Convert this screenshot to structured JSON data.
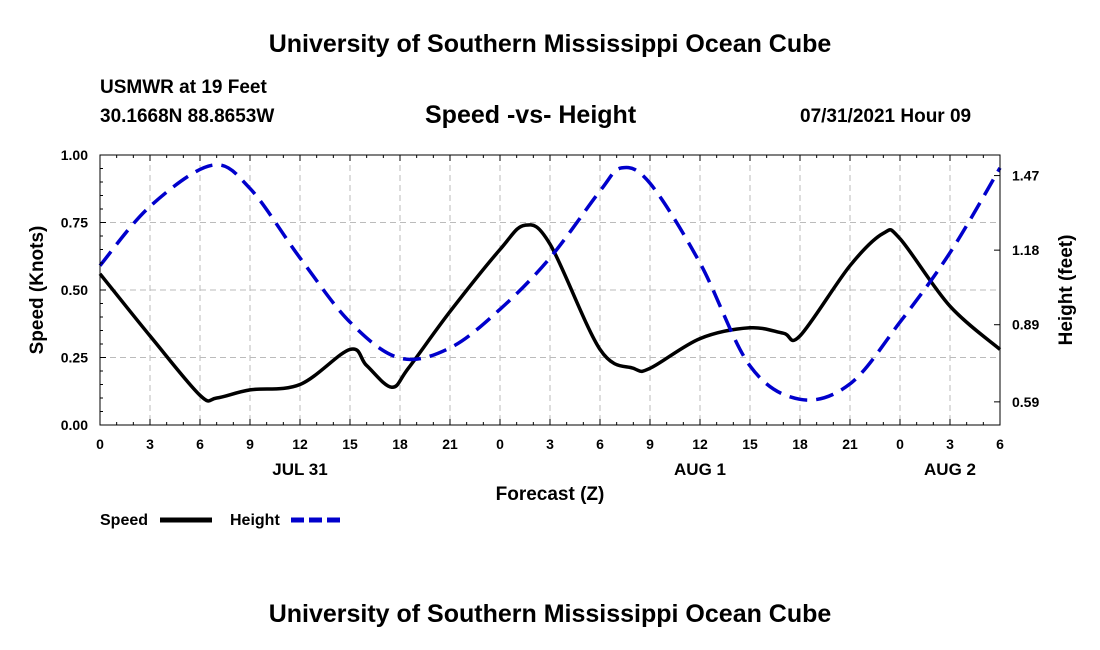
{
  "header": {
    "top_title": "University of Southern Mississippi Ocean Cube",
    "station": "USMWR at 19 Feet",
    "coords": "30.1668N  88.8653W",
    "datetime": "07/31/2021 Hour 09"
  },
  "footer": {
    "title": "University of Southern Mississippi Ocean Cube"
  },
  "colors": {
    "speed": "#000000",
    "height": "#0000cc",
    "grid": "#bbbbbb"
  },
  "chart_data": {
    "type": "line",
    "title": "Speed -vs- Height",
    "xlabel": "Forecast (Z)",
    "ylabel": "Speed (Knots)",
    "y2label": "Height (feet)",
    "x_range": [
      0,
      54
    ],
    "ylim": [
      0,
      1.0
    ],
    "y2lim": [
      0.5,
      1.55
    ],
    "x_ticks": [
      {
        "x": 0,
        "label": "0"
      },
      {
        "x": 3,
        "label": "3"
      },
      {
        "x": 6,
        "label": "6"
      },
      {
        "x": 9,
        "label": "9"
      },
      {
        "x": 12,
        "label": "12"
      },
      {
        "x": 15,
        "label": "15"
      },
      {
        "x": 18,
        "label": "18"
      },
      {
        "x": 21,
        "label": "21"
      },
      {
        "x": 24,
        "label": "0"
      },
      {
        "x": 27,
        "label": "3"
      },
      {
        "x": 30,
        "label": "6"
      },
      {
        "x": 33,
        "label": "9"
      },
      {
        "x": 36,
        "label": "12"
      },
      {
        "x": 39,
        "label": "15"
      },
      {
        "x": 42,
        "label": "18"
      },
      {
        "x": 45,
        "label": "21"
      },
      {
        "x": 48,
        "label": "0"
      },
      {
        "x": 51,
        "label": "3"
      },
      {
        "x": 54,
        "label": "6"
      }
    ],
    "day_labels": [
      {
        "x": 12,
        "label": "JUL 31"
      },
      {
        "x": 36,
        "label": "AUG 1"
      },
      {
        "x": 51,
        "label": "AUG 2"
      }
    ],
    "y_ticks": [
      {
        "v": 0.0,
        "label": "0.00"
      },
      {
        "v": 0.25,
        "label": "0.25"
      },
      {
        "v": 0.5,
        "label": "0.50"
      },
      {
        "v": 0.75,
        "label": "0.75"
      },
      {
        "v": 1.0,
        "label": "1.00"
      }
    ],
    "y2_ticks": [
      {
        "v": 0.59,
        "label": "0.59"
      },
      {
        "v": 0.89,
        "label": "0.89"
      },
      {
        "v": 1.18,
        "label": "1.18"
      },
      {
        "v": 1.47,
        "label": "1.47"
      }
    ],
    "series": [
      {
        "name": "Speed",
        "axis": "left",
        "style": "solid",
        "color": "#000000",
        "x": [
          0,
          3,
          6,
          7,
          9,
          12,
          15,
          16,
          17.5,
          18.5,
          21,
          24,
          25.5,
          27,
          30,
          32,
          33,
          36,
          39,
          41,
          42,
          45,
          47,
          48,
          51,
          54
        ],
        "y": [
          0.56,
          0.33,
          0.11,
          0.1,
          0.13,
          0.15,
          0.28,
          0.22,
          0.14,
          0.21,
          0.42,
          0.65,
          0.74,
          0.67,
          0.28,
          0.21,
          0.21,
          0.32,
          0.36,
          0.34,
          0.33,
          0.59,
          0.71,
          0.69,
          0.44,
          0.28
        ]
      },
      {
        "name": "Height",
        "axis": "right",
        "style": "dashed",
        "color": "#0000cc",
        "x": [
          0,
          3,
          6.7,
          9,
          12,
          15,
          18,
          21,
          24,
          27,
          30,
          31.3,
          33,
          36,
          39,
          42,
          45,
          48,
          51,
          54
        ],
        "y": [
          1.12,
          1.35,
          1.51,
          1.42,
          1.15,
          0.9,
          0.76,
          0.8,
          0.95,
          1.15,
          1.41,
          1.5,
          1.44,
          1.13,
          0.73,
          0.6,
          0.66,
          0.9,
          1.17,
          1.5
        ]
      }
    ],
    "legend": [
      {
        "name": "Speed",
        "label": "Speed"
      },
      {
        "name": "Height",
        "label": "Height"
      }
    ],
    "grid": true,
    "legend_position": "bottom-left"
  }
}
